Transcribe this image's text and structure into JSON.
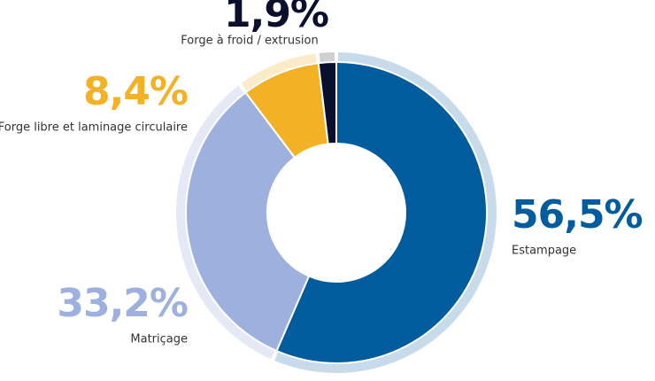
{
  "chart_data": {
    "type": "donut",
    "categories": [
      "Estampage",
      "Matriçage",
      "Forge libre et laminage circulaire",
      "Forge à froid / extrusion"
    ],
    "values": [
      56.5,
      33.2,
      8.4,
      1.9
    ],
    "value_labels": [
      "56,5%",
      "33,2%",
      "8,4%",
      "1,9%"
    ],
    "colors": [
      "#005c9c",
      "#9eb1de",
      "#f3b125",
      "#0a0f2e"
    ],
    "ring_colors": [
      "#c8dbea",
      "#e4e9f5",
      "#fcebc9",
      "#d0d0d2"
    ]
  }
}
